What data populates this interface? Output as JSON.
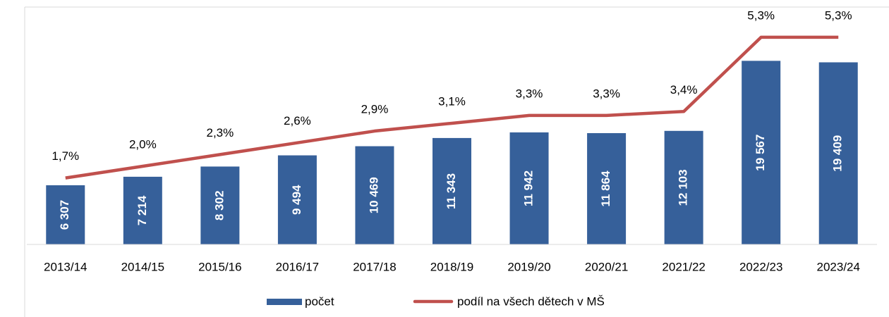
{
  "chart_data": {
    "type": "bar-line",
    "categories": [
      "2013/14",
      "2014/15",
      "2015/16",
      "2016/17",
      "2017/18",
      "2018/19",
      "2019/20",
      "2020/21",
      "2021/22",
      "2022/23",
      "2023/24"
    ],
    "series": [
      {
        "name": "počet",
        "type": "bar",
        "color": "#36609a",
        "values": [
          6307,
          7214,
          8302,
          9494,
          10469,
          11343,
          11942,
          11864,
          12103,
          19567,
          19409
        ],
        "value_labels": [
          "6 307",
          "7 214",
          "8 302",
          "9 494",
          "10 469",
          "11 343",
          "11 942",
          "11 864",
          "12 103",
          "19 567",
          "19 409"
        ]
      },
      {
        "name": "podíl na všech dětech v MŠ",
        "type": "line",
        "axis": "y2",
        "color": "#c0504d",
        "values": [
          1.7,
          2.0,
          2.3,
          2.6,
          2.9,
          3.1,
          3.3,
          3.3,
          3.4,
          5.3,
          5.3
        ],
        "value_labels": [
          "1,7%",
          "2,0%",
          "2,3%",
          "2,6%",
          "2,9%",
          "3,1%",
          "3,3%",
          "3,3%",
          "3,4%",
          "5,3%",
          "5,3%"
        ]
      }
    ],
    "ylim": [
      0,
      25000
    ],
    "y2lim": [
      0,
      6
    ],
    "legend": "bottom"
  }
}
